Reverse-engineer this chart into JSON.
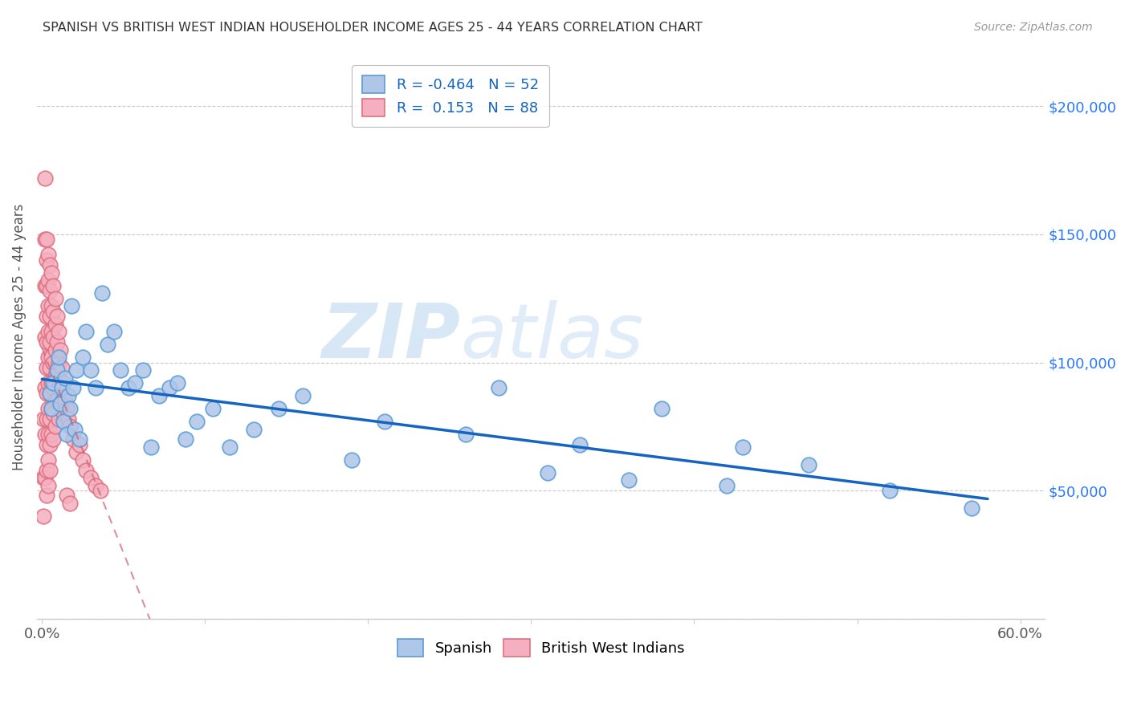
{
  "title": "SPANISH VS BRITISH WEST INDIAN HOUSEHOLDER INCOME AGES 25 - 44 YEARS CORRELATION CHART",
  "source": "Source: ZipAtlas.com",
  "ylabel": "Householder Income Ages 25 - 44 years",
  "xlim": [
    -0.003,
    0.615
  ],
  "ylim": [
    0,
    220000
  ],
  "xticks": [
    0.0,
    0.1,
    0.2,
    0.3,
    0.4,
    0.5,
    0.6
  ],
  "xticklabels": [
    "0.0%",
    "",
    "",
    "",
    "",
    "",
    "60.0%"
  ],
  "yticks": [
    0,
    50000,
    100000,
    150000,
    200000
  ],
  "yticklabels_right": [
    "",
    "$50,000",
    "$100,000",
    "$150,000",
    "$200,000"
  ],
  "spanish_fill": "#aec6e8",
  "spanish_edge": "#5b9bd5",
  "bwi_fill": "#f4b0c0",
  "bwi_edge": "#e07080",
  "trend_blue": "#1565c0",
  "trend_pink": "#d06070",
  "watermark_color": "#c8dff0",
  "background": "#ffffff",
  "grid_color": "#c8c8c8",
  "note_color": "#555555",
  "title_color": "#333333",
  "source_color": "#999999",
  "right_label_color": "#2979ff",
  "spanish_x": [
    0.005,
    0.006,
    0.007,
    0.009,
    0.01,
    0.011,
    0.012,
    0.013,
    0.014,
    0.015,
    0.016,
    0.017,
    0.018,
    0.019,
    0.02,
    0.021,
    0.023,
    0.025,
    0.027,
    0.03,
    0.033,
    0.037,
    0.04,
    0.044,
    0.048,
    0.053,
    0.057,
    0.062,
    0.067,
    0.072,
    0.078,
    0.083,
    0.088,
    0.095,
    0.105,
    0.115,
    0.13,
    0.145,
    0.16,
    0.19,
    0.21,
    0.26,
    0.31,
    0.36,
    0.38,
    0.43,
    0.28,
    0.33,
    0.42,
    0.47,
    0.52,
    0.57
  ],
  "spanish_y": [
    88000,
    82000,
    92000,
    97000,
    102000,
    84000,
    90000,
    77000,
    94000,
    72000,
    87000,
    82000,
    122000,
    90000,
    74000,
    97000,
    70000,
    102000,
    112000,
    97000,
    90000,
    127000,
    107000,
    112000,
    97000,
    90000,
    92000,
    97000,
    67000,
    87000,
    90000,
    92000,
    70000,
    77000,
    82000,
    67000,
    74000,
    82000,
    87000,
    62000,
    77000,
    72000,
    57000,
    54000,
    82000,
    67000,
    90000,
    68000,
    52000,
    60000,
    50000,
    43000
  ],
  "bwi_x": [
    0.001,
    0.001,
    0.001,
    0.002,
    0.002,
    0.002,
    0.002,
    0.002,
    0.002,
    0.002,
    0.003,
    0.003,
    0.003,
    0.003,
    0.003,
    0.003,
    0.003,
    0.003,
    0.003,
    0.003,
    0.003,
    0.004,
    0.004,
    0.004,
    0.004,
    0.004,
    0.004,
    0.004,
    0.004,
    0.004,
    0.004,
    0.005,
    0.005,
    0.005,
    0.005,
    0.005,
    0.005,
    0.005,
    0.005,
    0.005,
    0.006,
    0.006,
    0.006,
    0.006,
    0.006,
    0.006,
    0.006,
    0.007,
    0.007,
    0.007,
    0.007,
    0.007,
    0.007,
    0.007,
    0.008,
    0.008,
    0.008,
    0.008,
    0.008,
    0.008,
    0.009,
    0.009,
    0.009,
    0.009,
    0.01,
    0.01,
    0.01,
    0.01,
    0.011,
    0.011,
    0.012,
    0.012,
    0.013,
    0.013,
    0.014,
    0.015,
    0.016,
    0.017,
    0.019,
    0.021,
    0.023,
    0.025,
    0.027,
    0.03,
    0.033,
    0.036,
    0.015,
    0.017
  ],
  "bwi_y": [
    78000,
    55000,
    40000,
    172000,
    148000,
    130000,
    110000,
    90000,
    72000,
    55000,
    148000,
    140000,
    130000,
    118000,
    108000,
    98000,
    88000,
    78000,
    68000,
    58000,
    48000,
    142000,
    132000,
    122000,
    112000,
    102000,
    92000,
    82000,
    72000,
    62000,
    52000,
    138000,
    128000,
    118000,
    108000,
    98000,
    88000,
    78000,
    68000,
    58000,
    135000,
    122000,
    112000,
    102000,
    92000,
    82000,
    72000,
    130000,
    120000,
    110000,
    100000,
    90000,
    80000,
    70000,
    125000,
    115000,
    105000,
    95000,
    85000,
    75000,
    118000,
    108000,
    95000,
    85000,
    112000,
    100000,
    90000,
    78000,
    105000,
    92000,
    98000,
    85000,
    92000,
    80000,
    85000,
    82000,
    78000,
    75000,
    70000,
    65000,
    68000,
    62000,
    58000,
    55000,
    52000,
    50000,
    48000,
    45000
  ],
  "legend_r_spanish": "R = -0.464",
  "legend_n_spanish": "N = 52",
  "legend_r_bwi": "R =  0.153",
  "legend_n_bwi": "N = 88",
  "watermark": "ZIPatlas"
}
